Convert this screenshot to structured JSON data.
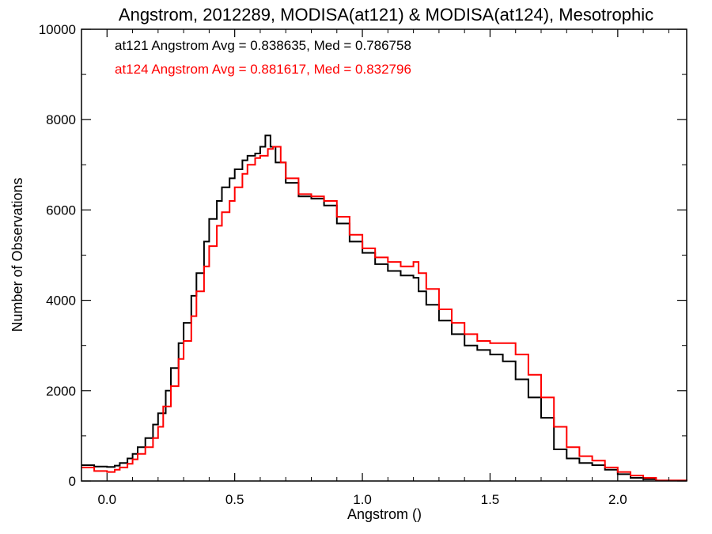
{
  "chart_data": {
    "type": "line",
    "title": "Angstrom, 2012289, MODISA(at121) & MODISA(at124), Mesotrophic",
    "xlabel": "Angstrom ()",
    "ylabel": "Number of Observations",
    "xlim": [
      -0.1,
      2.27
    ],
    "ylim": [
      0,
      10000
    ],
    "x_ticks": [
      0.0,
      0.5,
      1.0,
      1.5,
      2.0
    ],
    "x_tick_labels": [
      "0.0",
      "0.5",
      "1.0",
      "1.5",
      "2.0"
    ],
    "y_ticks": [
      0,
      2000,
      4000,
      6000,
      8000,
      10000
    ],
    "y_tick_labels": [
      "0",
      "2000",
      "4000",
      "6000",
      "8000",
      "10000"
    ],
    "grid": false,
    "step": true,
    "annotations": [
      {
        "text": "at121 Angstrom Avg = 0.838635, Med = 0.786758",
        "color": "#000000"
      },
      {
        "text": "at124 Angstrom Avg = 0.881617, Med = 0.832796",
        "color": "#ff0000"
      }
    ],
    "series": [
      {
        "name": "at121",
        "color": "#000000",
        "points": [
          [
            -0.1,
            350
          ],
          [
            -0.05,
            320
          ],
          [
            0.0,
            310
          ],
          [
            0.03,
            340
          ],
          [
            0.05,
            400
          ],
          [
            0.08,
            500
          ],
          [
            0.1,
            600
          ],
          [
            0.12,
            750
          ],
          [
            0.15,
            950
          ],
          [
            0.18,
            1250
          ],
          [
            0.2,
            1500
          ],
          [
            0.23,
            2000
          ],
          [
            0.25,
            2500
          ],
          [
            0.28,
            3050
          ],
          [
            0.3,
            3500
          ],
          [
            0.33,
            4100
          ],
          [
            0.35,
            4600
          ],
          [
            0.38,
            5300
          ],
          [
            0.4,
            5800
          ],
          [
            0.43,
            6200
          ],
          [
            0.45,
            6500
          ],
          [
            0.48,
            6700
          ],
          [
            0.5,
            6900
          ],
          [
            0.53,
            7100
          ],
          [
            0.55,
            7200
          ],
          [
            0.58,
            7250
          ],
          [
            0.6,
            7400
          ],
          [
            0.62,
            7650
          ],
          [
            0.64,
            7400
          ],
          [
            0.66,
            7050
          ],
          [
            0.7,
            6600
          ],
          [
            0.75,
            6300
          ],
          [
            0.8,
            6250
          ],
          [
            0.85,
            6100
          ],
          [
            0.9,
            5700
          ],
          [
            0.95,
            5300
          ],
          [
            1.0,
            5050
          ],
          [
            1.05,
            4800
          ],
          [
            1.1,
            4650
          ],
          [
            1.15,
            4550
          ],
          [
            1.2,
            4500
          ],
          [
            1.22,
            4200
          ],
          [
            1.25,
            3900
          ],
          [
            1.3,
            3550
          ],
          [
            1.35,
            3250
          ],
          [
            1.4,
            3000
          ],
          [
            1.45,
            2900
          ],
          [
            1.5,
            2800
          ],
          [
            1.55,
            2650
          ],
          [
            1.6,
            2250
          ],
          [
            1.65,
            1850
          ],
          [
            1.7,
            1400
          ],
          [
            1.75,
            700
          ],
          [
            1.8,
            500
          ],
          [
            1.85,
            400
          ],
          [
            1.9,
            350
          ],
          [
            1.95,
            250
          ],
          [
            2.0,
            150
          ],
          [
            2.05,
            70
          ],
          [
            2.1,
            40
          ],
          [
            2.15,
            10
          ],
          [
            2.27,
            0
          ]
        ]
      },
      {
        "name": "at124",
        "color": "#ff0000",
        "points": [
          [
            -0.1,
            300
          ],
          [
            -0.05,
            220
          ],
          [
            0.0,
            200
          ],
          [
            0.03,
            250
          ],
          [
            0.05,
            300
          ],
          [
            0.08,
            380
          ],
          [
            0.1,
            480
          ],
          [
            0.12,
            600
          ],
          [
            0.15,
            750
          ],
          [
            0.18,
            950
          ],
          [
            0.2,
            1200
          ],
          [
            0.22,
            1650
          ],
          [
            0.25,
            2100
          ],
          [
            0.28,
            2700
          ],
          [
            0.3,
            3100
          ],
          [
            0.33,
            3650
          ],
          [
            0.35,
            4200
          ],
          [
            0.38,
            4750
          ],
          [
            0.4,
            5200
          ],
          [
            0.43,
            5650
          ],
          [
            0.45,
            5950
          ],
          [
            0.48,
            6200
          ],
          [
            0.5,
            6500
          ],
          [
            0.53,
            6800
          ],
          [
            0.55,
            7000
          ],
          [
            0.58,
            7150
          ],
          [
            0.6,
            7200
          ],
          [
            0.63,
            7350
          ],
          [
            0.65,
            7400
          ],
          [
            0.68,
            7050
          ],
          [
            0.7,
            6700
          ],
          [
            0.75,
            6350
          ],
          [
            0.8,
            6300
          ],
          [
            0.85,
            6200
          ],
          [
            0.9,
            5850
          ],
          [
            0.95,
            5450
          ],
          [
            1.0,
            5150
          ],
          [
            1.05,
            4950
          ],
          [
            1.1,
            4850
          ],
          [
            1.15,
            4750
          ],
          [
            1.2,
            4850
          ],
          [
            1.22,
            4600
          ],
          [
            1.25,
            4250
          ],
          [
            1.3,
            3800
          ],
          [
            1.35,
            3500
          ],
          [
            1.4,
            3250
          ],
          [
            1.45,
            3100
          ],
          [
            1.5,
            3050
          ],
          [
            1.55,
            3050
          ],
          [
            1.6,
            2800
          ],
          [
            1.65,
            2350
          ],
          [
            1.7,
            1850
          ],
          [
            1.75,
            1200
          ],
          [
            1.8,
            750
          ],
          [
            1.85,
            550
          ],
          [
            1.9,
            450
          ],
          [
            1.95,
            300
          ],
          [
            2.0,
            200
          ],
          [
            2.05,
            120
          ],
          [
            2.1,
            70
          ],
          [
            2.15,
            10
          ],
          [
            2.27,
            0
          ]
        ]
      }
    ]
  }
}
